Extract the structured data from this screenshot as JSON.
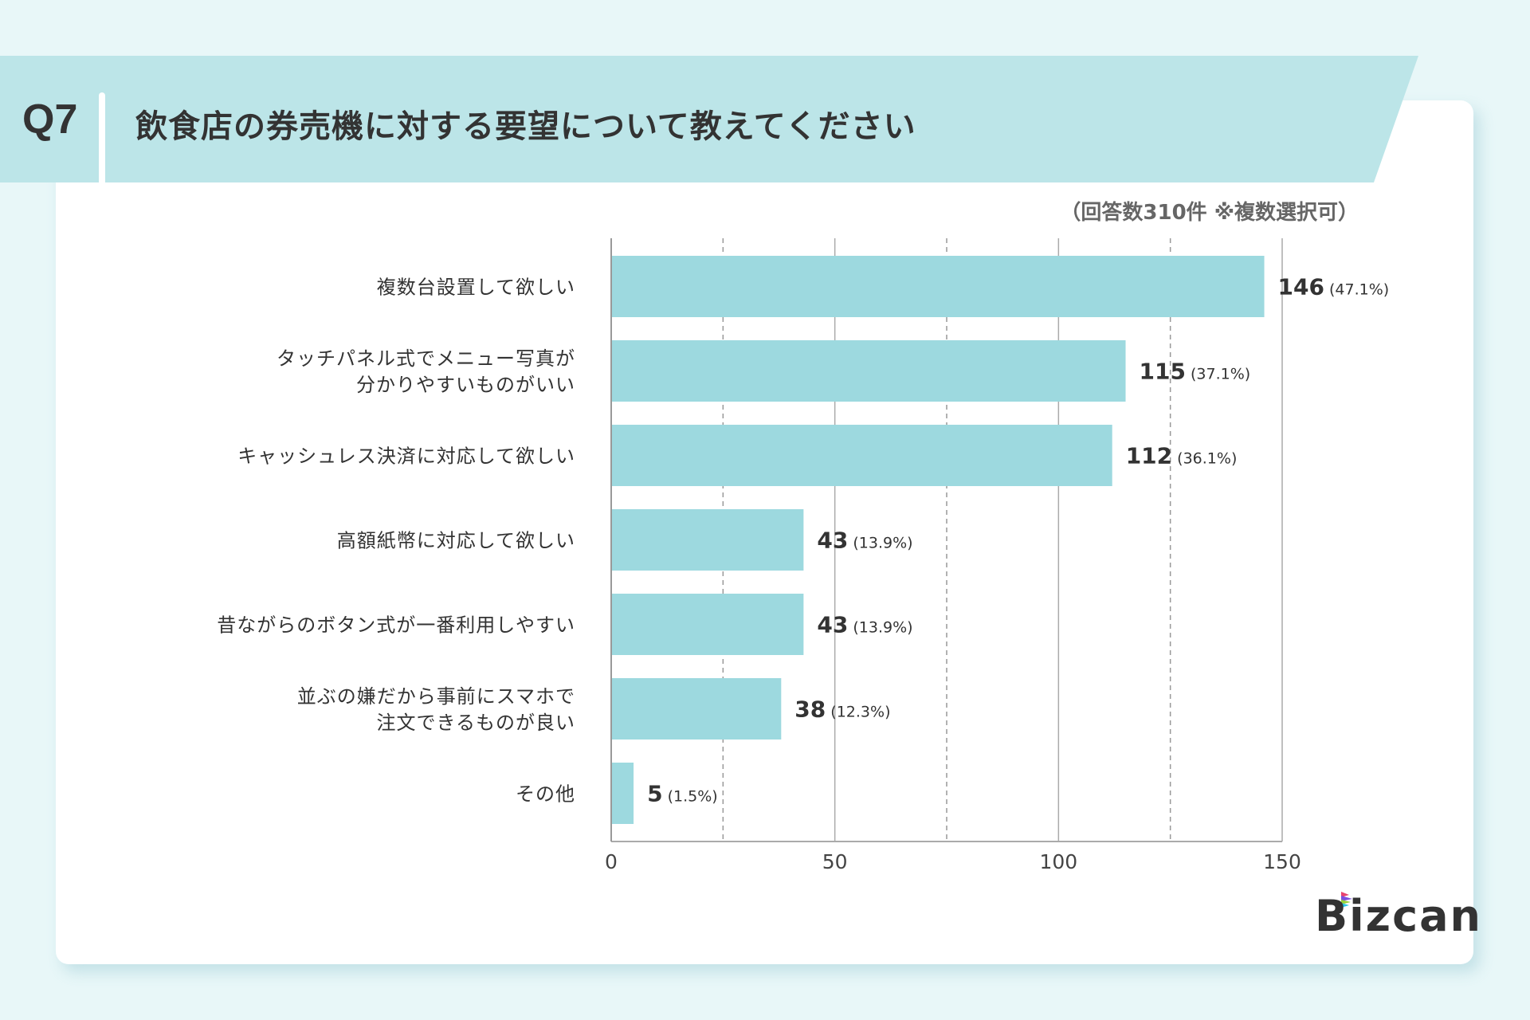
{
  "header": {
    "question_no": "Q7",
    "title": "飲食店の券売機に対する要望について教えてください"
  },
  "note": "（回答数310件 ※複数選択可）",
  "logo": "Bizcan",
  "colors": {
    "background": "#e8f7f8",
    "banner": "#bce5e8",
    "bar": "#9dd9df",
    "text": "#333333"
  },
  "chart_data": {
    "type": "bar",
    "orientation": "horizontal",
    "categories": [
      [
        "複数台設置して欲しい"
      ],
      [
        "タッチパネル式でメニュー写真が",
        "分かりやすいものがいい"
      ],
      [
        "キャッシュレス決済に対応して欲しい"
      ],
      [
        "高額紙幣に対応して欲しい"
      ],
      [
        "昔ながらのボタン式が一番利用しやすい"
      ],
      [
        "並ぶの嫌だから事前にスマホで",
        "注文できるものが良い"
      ],
      [
        "その他"
      ]
    ],
    "values": [
      146,
      115,
      112,
      43,
      43,
      38,
      5
    ],
    "percent_labels": [
      "(47.1%)",
      "(37.1%)",
      "(36.1%)",
      "(13.9%)",
      "(13.9%)",
      "(12.3%)",
      "(1.5%)"
    ],
    "xlim": [
      0,
      150
    ],
    "xticks": [
      0,
      50,
      100,
      150
    ],
    "minor_gridlines": [
      25,
      75,
      125
    ],
    "grid": true
  }
}
